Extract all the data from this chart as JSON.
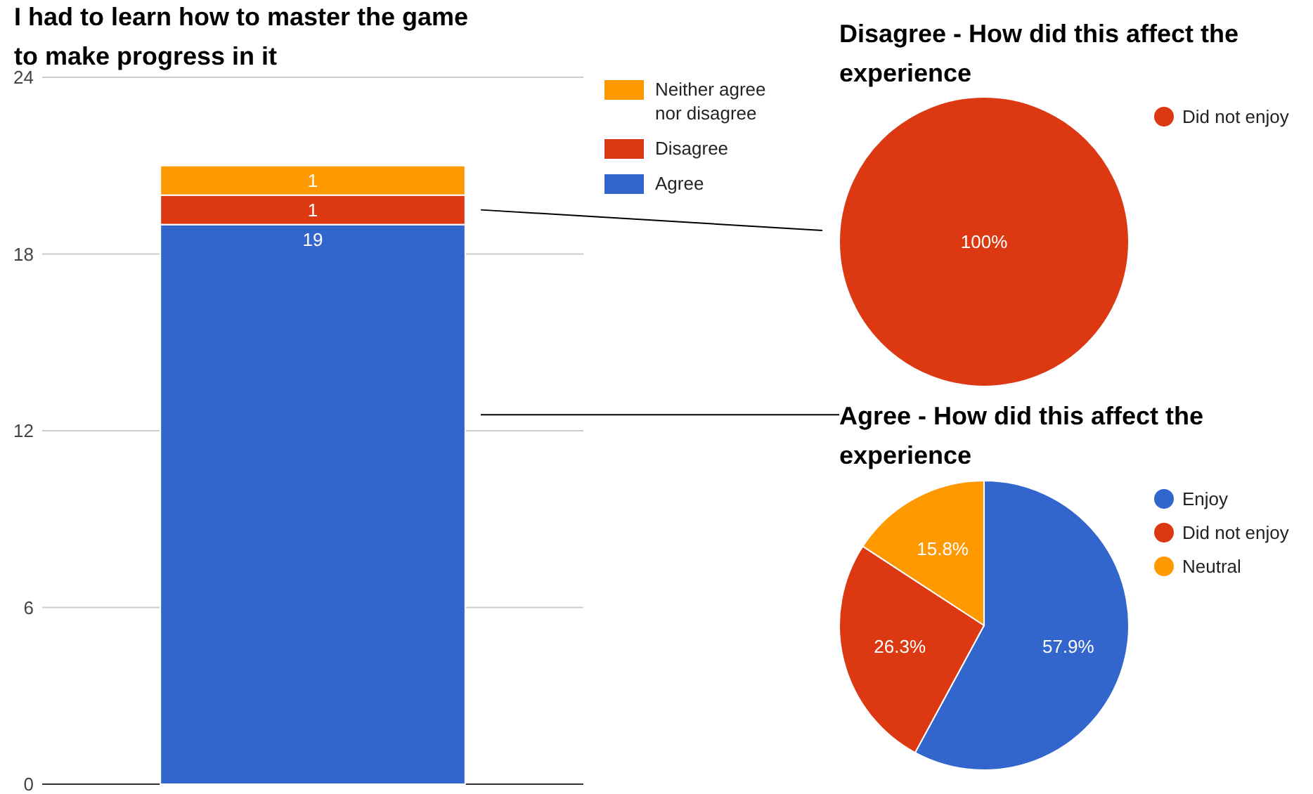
{
  "chart_data": [
    {
      "type": "bar",
      "title": "I had to learn how to master the game to make progress in it",
      "categories": [
        null
      ],
      "stacked": true,
      "series": [
        {
          "name": "Agree",
          "color": "#3366cc",
          "values": [
            19
          ]
        },
        {
          "name": "Disagree",
          "color": "#dc3912",
          "values": [
            1
          ]
        },
        {
          "name": "Neither agree nor disagree",
          "color": "#ff9900",
          "values": [
            1
          ]
        }
      ],
      "ylim": [
        0,
        24
      ],
      "yticks": [
        0,
        6,
        12,
        18,
        24
      ],
      "grid": "y",
      "legend": "top right",
      "data_labels": true
    },
    {
      "type": "pie",
      "title": "Disagree - How did this affect the experience",
      "categories": [
        "Did not enjoy"
      ],
      "values": [
        100
      ],
      "colors": [
        "#dc3912"
      ],
      "value_labels": [
        "100%"
      ],
      "legend": "right"
    },
    {
      "type": "pie",
      "title": "Agree - How did this affect the experience",
      "categories": [
        "Enjoy",
        "Did not enjoy",
        "Neutral"
      ],
      "values": [
        57.9,
        26.3,
        15.8
      ],
      "colors": [
        "#3366cc",
        "#dc3912",
        "#ff9900"
      ],
      "value_labels": [
        "57.9%",
        "26.3%",
        "15.8%"
      ],
      "legend": "right"
    }
  ]
}
